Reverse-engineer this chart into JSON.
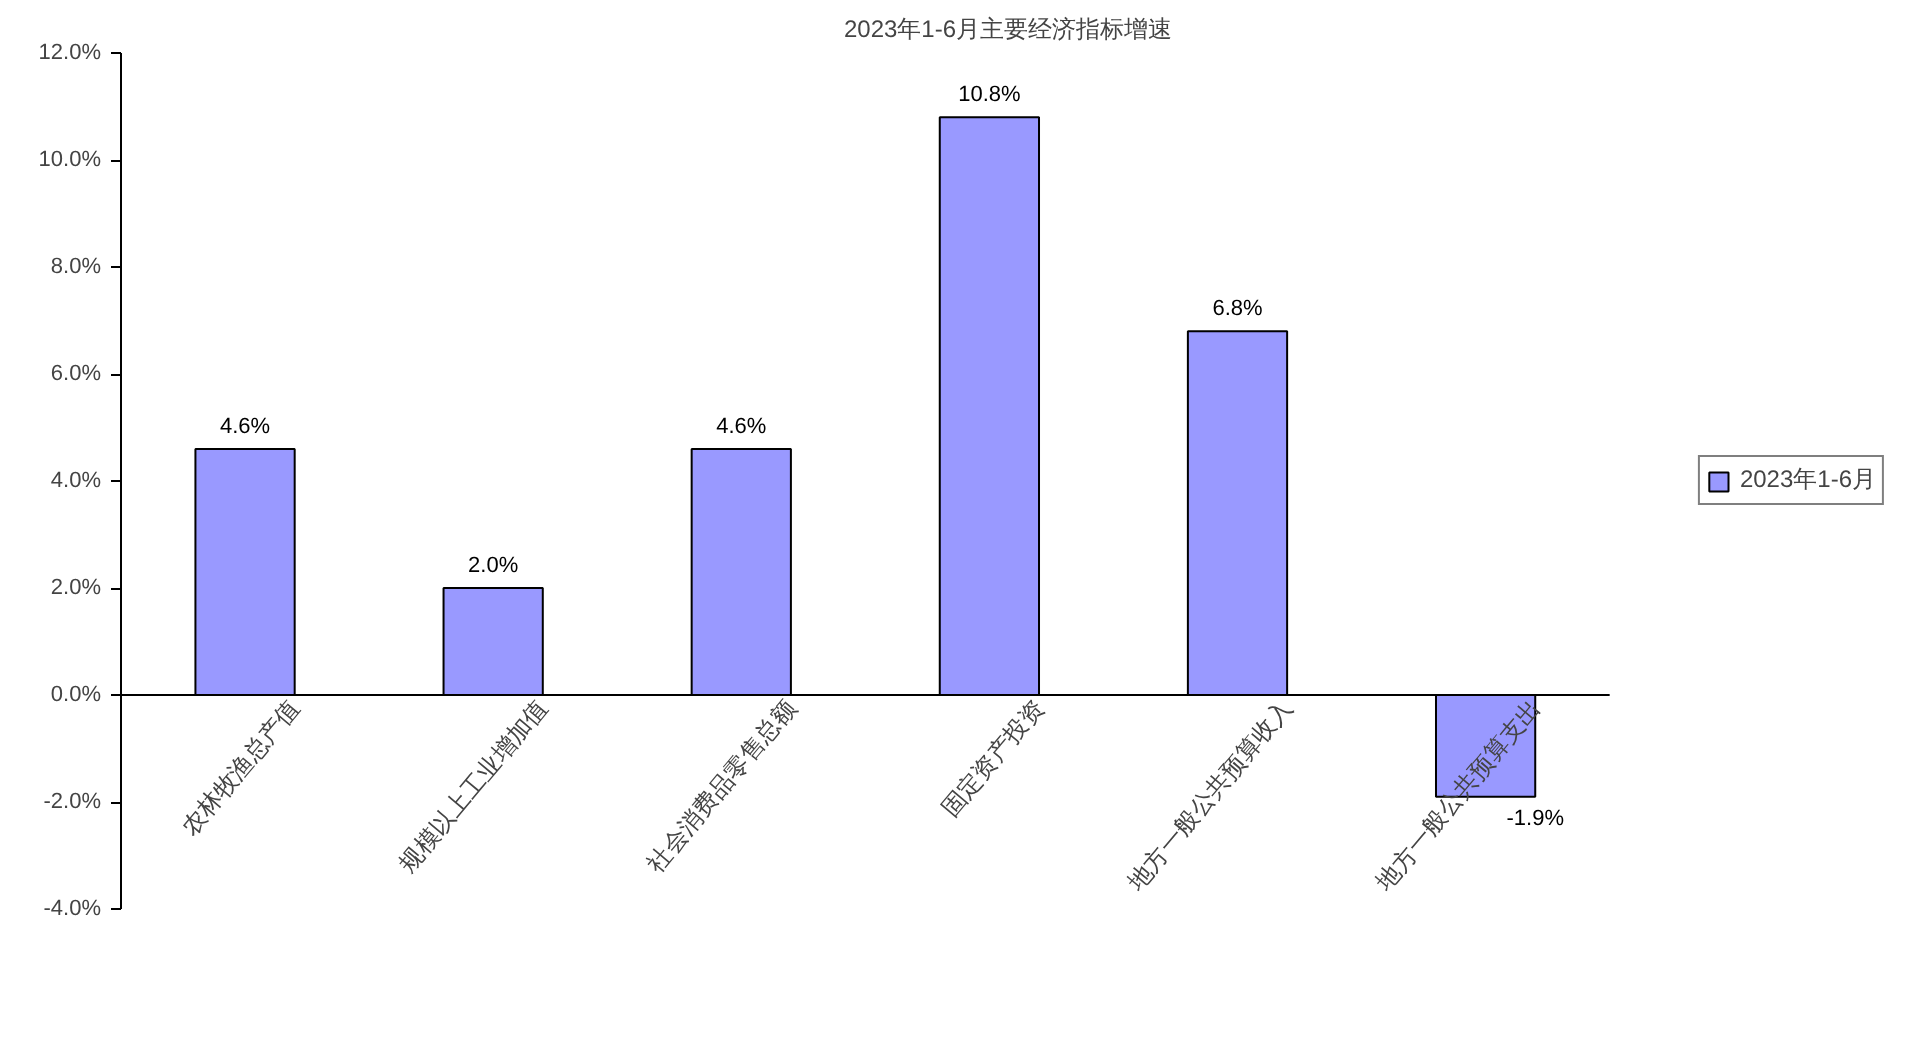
{
  "chart_data": {
    "type": "bar",
    "title": "2023年1-6月主要经济指标增速",
    "categories": [
      "农林牧渔总产值",
      "规模以上工业增加值",
      "社会消费品零售总额",
      "固定资产投资",
      "地方一般公共预算收入",
      "地方一般公共预算支出"
    ],
    "series": [
      {
        "name": "2023年1-6月",
        "color": "#9999ff",
        "values": [
          4.6,
          2.0,
          4.6,
          10.8,
          6.8,
          -1.9
        ],
        "value_labels": [
          "4.6%",
          "2.0%",
          "4.6%",
          "10.8%",
          "6.8%",
          "-1.9%"
        ]
      }
    ],
    "ylim": [
      -4,
      12
    ],
    "yticks": [
      {
        "value": -4,
        "label": "-4.0%"
      },
      {
        "value": -2,
        "label": "-2.0%"
      },
      {
        "value": 0,
        "label": "0.0%"
      },
      {
        "value": 2,
        "label": "2.0%"
      },
      {
        "value": 4,
        "label": "4.0%"
      },
      {
        "value": 6,
        "label": "6.0%"
      },
      {
        "value": 8,
        "label": "8.0%"
      },
      {
        "value": 10,
        "label": "10.0%"
      },
      {
        "value": 12,
        "label": "12.0%"
      }
    ],
    "grid": false,
    "legend": "right"
  }
}
